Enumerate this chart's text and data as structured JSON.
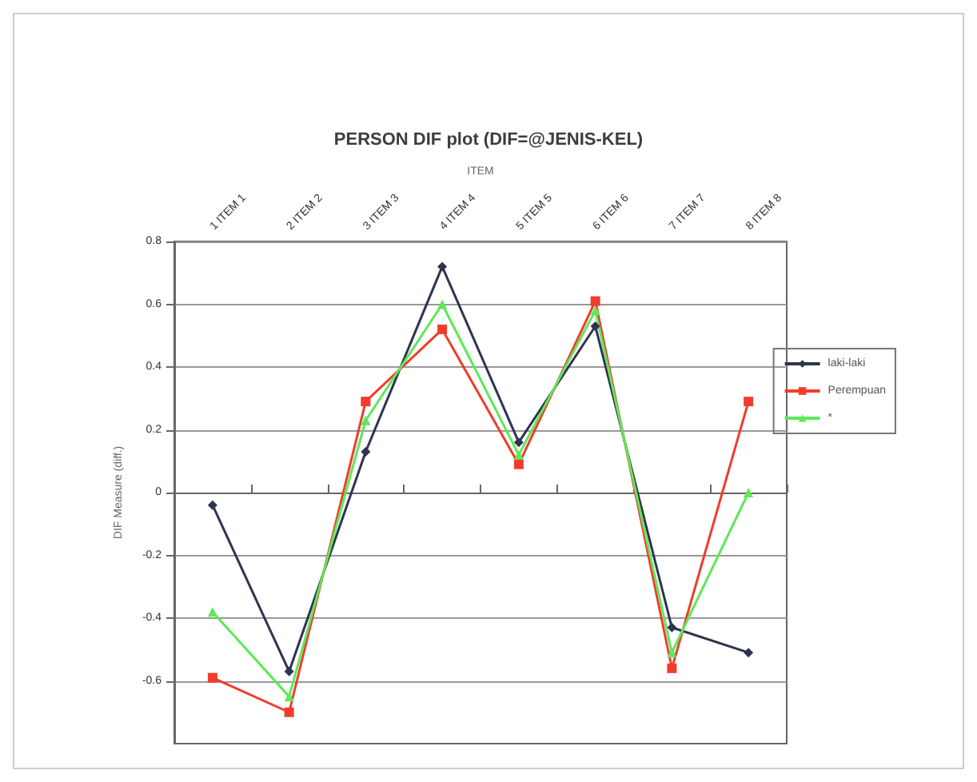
{
  "chart_data": {
    "type": "line",
    "title": "PERSON DIF plot (DIF=@JENIS-KEL)",
    "xlabel": "ITEM",
    "ylabel": "DIF Measure (diff.)",
    "categories": [
      "1 ITEM 1",
      "2 ITEM 2",
      "3 ITEM 3",
      "4 ITEM 4",
      "5 ITEM 5",
      "6 ITEM 6",
      "7 ITEM 7",
      "8 ITEM 8"
    ],
    "series": [
      {
        "name": "laki-laki",
        "color": "#2e3450",
        "marker": "diamond",
        "values": [
          -0.04,
          -0.57,
          0.13,
          0.72,
          0.16,
          0.53,
          -0.43,
          -0.51
        ]
      },
      {
        "name": "Perempuan",
        "color": "#f03c2c",
        "marker": "square",
        "values": [
          -0.59,
          -0.7,
          0.29,
          0.52,
          0.09,
          0.61,
          -0.56,
          0.29
        ]
      },
      {
        "name": "*",
        "color": "#5ee85a",
        "marker": "triangle",
        "values": [
          -0.38,
          -0.65,
          0.23,
          0.6,
          0.12,
          0.58,
          -0.51,
          0.0
        ]
      }
    ],
    "ylim": [
      -0.8,
      0.8
    ],
    "yticks": [
      -0.6,
      -0.4,
      -0.2,
      0,
      0.2,
      0.4,
      0.6,
      0.8
    ],
    "grid": "y",
    "legend": "right"
  }
}
